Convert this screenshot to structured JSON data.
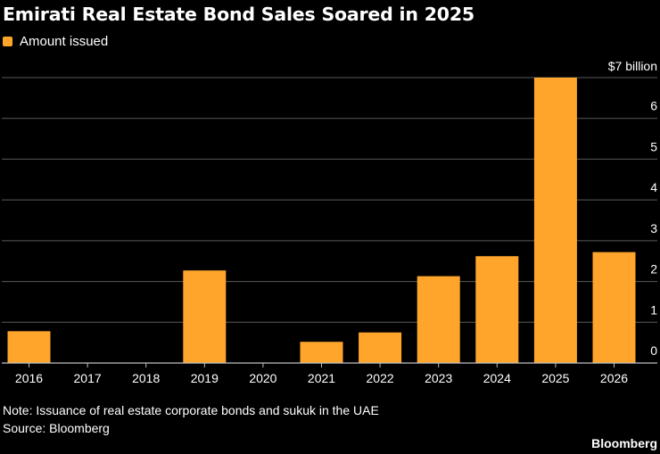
{
  "chart_data": {
    "type": "bar",
    "title": "Emirati Real Estate Bond Sales Soared in 2025",
    "categories": [
      "2016",
      "2017",
      "2018",
      "2019",
      "2020",
      "2021",
      "2022",
      "2023",
      "2024",
      "2025",
      "2026"
    ],
    "series": [
      {
        "name": "Amount issued",
        "values": [
          0.78,
          0,
          0,
          2.27,
          0,
          0.52,
          0.75,
          2.13,
          2.62,
          7.0,
          2.72
        ]
      }
    ],
    "ylim": [
      0,
      7
    ],
    "yticks": [
      "0",
      "1",
      "2",
      "3",
      "4",
      "5",
      "6",
      "$7 billion"
    ],
    "xlabel": "",
    "ylabel": "",
    "grid": true,
    "legend_position": "top-left",
    "y_axis_side": "right"
  },
  "colors": {
    "bar": "#ffa52c",
    "grid": "#5a5a5a",
    "axis": "#bfbfbf",
    "background": "#000000",
    "text": "#ffffff"
  },
  "note": "Note: Issuance of real estate corporate bonds and sukuk in the UAE",
  "source": "Source: Bloomberg",
  "brand": "Bloomberg"
}
